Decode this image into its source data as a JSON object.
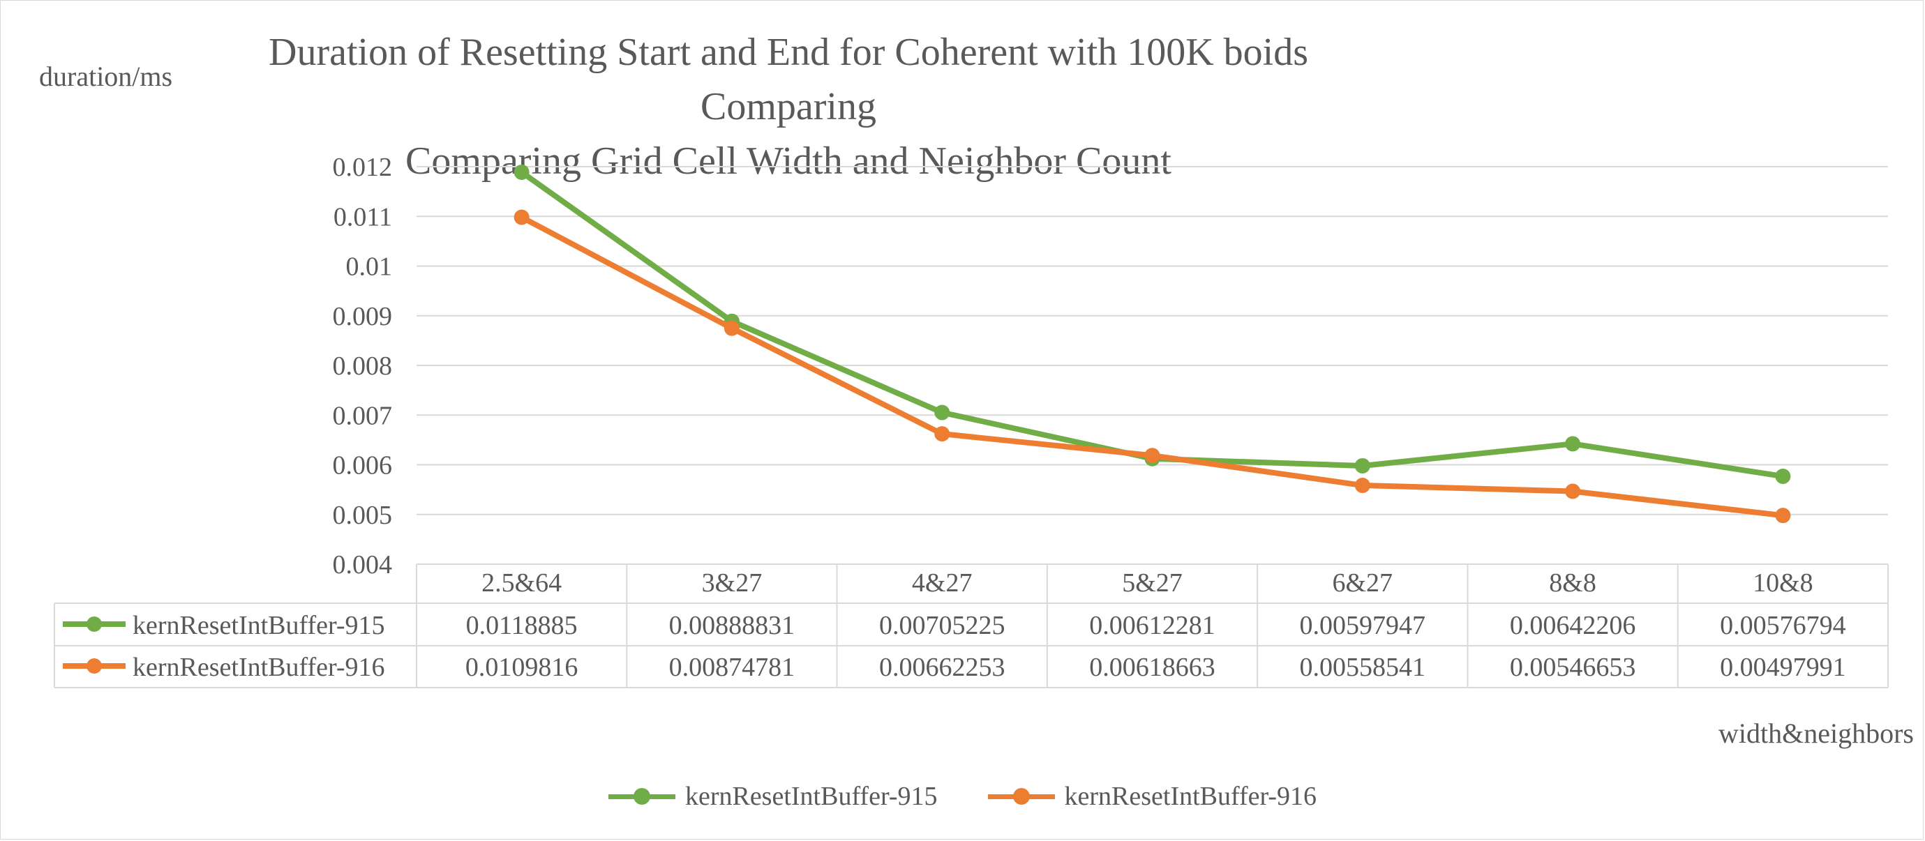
{
  "chart_data": {
    "type": "line",
    "title_line1": "Duration of Resetting Start and End for Coherent with 100K boids Comparing",
    "title_line2": "Comparing Grid Cell Width and Neighbor Count",
    "ylabel": "duration/ms",
    "xlabel": "width&neighbors",
    "ylim": [
      0.004,
      0.012
    ],
    "yticks": [
      "0.012",
      "0.011",
      "0.01",
      "0.009",
      "0.008",
      "0.007",
      "0.006",
      "0.005",
      "0.004"
    ],
    "categories": [
      "2.5&64",
      "3&27",
      "4&27",
      "5&27",
      "6&27",
      "8&8",
      "10&8"
    ],
    "series": [
      {
        "name": "kernResetIntBuffer-915",
        "color": "#70ad47",
        "values": [
          0.0118885,
          0.00888831,
          0.00705225,
          0.00612281,
          0.00597947,
          0.00642206,
          0.00576794
        ],
        "labels": [
          "0.0118885",
          "0.00888831",
          "0.00705225",
          "0.00612281",
          "0.00597947",
          "0.00642206",
          "0.00576794"
        ]
      },
      {
        "name": "kernResetIntBuffer-916",
        "color": "#ed7d31",
        "values": [
          0.0109816,
          0.00874781,
          0.00662253,
          0.00618663,
          0.00558541,
          0.00546653,
          0.00497991
        ],
        "labels": [
          "0.0109816",
          "0.00874781",
          "0.00662253",
          "0.00618663",
          "0.00558541",
          "0.00546653",
          "0.00497991"
        ]
      }
    ],
    "grid": true,
    "legend_position": "bottom",
    "data_table": true
  }
}
